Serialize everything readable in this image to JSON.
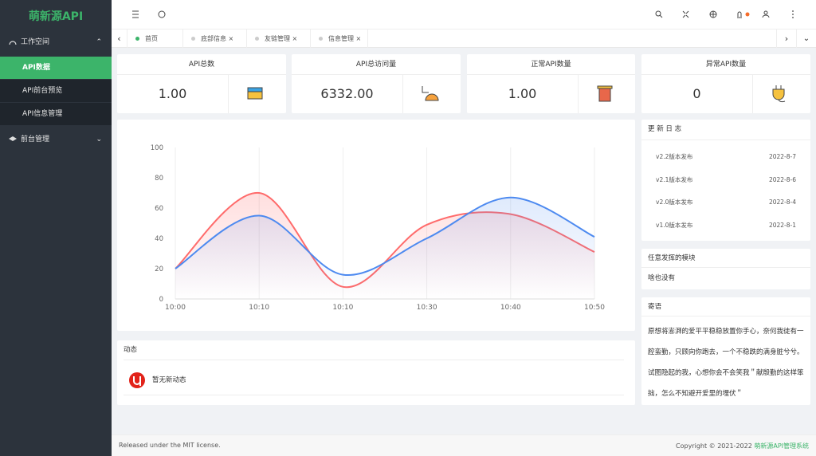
{
  "sidebar": {
    "brand": "萌新源API",
    "menu": [
      {
        "label": "工作空间",
        "children": [
          "API数据",
          "API前台预览",
          "API信息管理"
        ]
      },
      {
        "label": "前台管理"
      }
    ]
  },
  "tabs": [
    "首页",
    "底部信息",
    "友链管理",
    "信息管理"
  ],
  "stats": [
    {
      "title": "API总数",
      "value": "1.00"
    },
    {
      "title": "API总访问量",
      "value": "6332.00"
    },
    {
      "title": "正常API数量",
      "value": "1.00"
    },
    {
      "title": "异常API数量",
      "value": "0"
    }
  ],
  "chart": {
    "type": "line",
    "categories": [
      "10:00",
      "10:10",
      "10:10",
      "10:30",
      "10:40",
      "10:50"
    ],
    "series": [
      {
        "color": "#ff6b6b",
        "values": [
          20,
          70,
          8,
          49,
          56,
          31
        ]
      },
      {
        "color": "#4d8af0",
        "values": [
          20,
          55,
          16,
          40,
          67,
          41
        ]
      }
    ],
    "ylim": [
      0,
      100
    ],
    "yticks": [
      0,
      20,
      40,
      60,
      80,
      100
    ]
  },
  "activity": {
    "title": "动态",
    "items": [
      "暂无新动态"
    ]
  },
  "changelog": {
    "title": "更 新 日 志",
    "items": [
      {
        "text": "v2.2版本发布",
        "date": "2022-8-7"
      },
      {
        "text": "v2.1版本发布",
        "date": "2022-8-6"
      },
      {
        "text": "v2.0版本发布",
        "date": "2022-8-4"
      },
      {
        "text": "v1.0版本发布",
        "date": "2022-8-1"
      }
    ]
  },
  "module": {
    "title": "任意发挥的模块",
    "text": "啥也没有"
  },
  "message": {
    "title": "寄语",
    "text": "原想将澎湃的爱平平稳稳放置你手心，奈何我徒有一腔蛮勤，只顾向你跑去，一个不稳跌的满身脏兮兮。试图隐起的我，心想你会不会笑我＂献殷勤的这样笨拙，怎么不知避开爱里的埋伏＂"
  },
  "footer": {
    "left": "Released under the MIT license.",
    "right_prefix": "Copyright © 2021-2022",
    "right_link": "萌新源API管理系统"
  }
}
